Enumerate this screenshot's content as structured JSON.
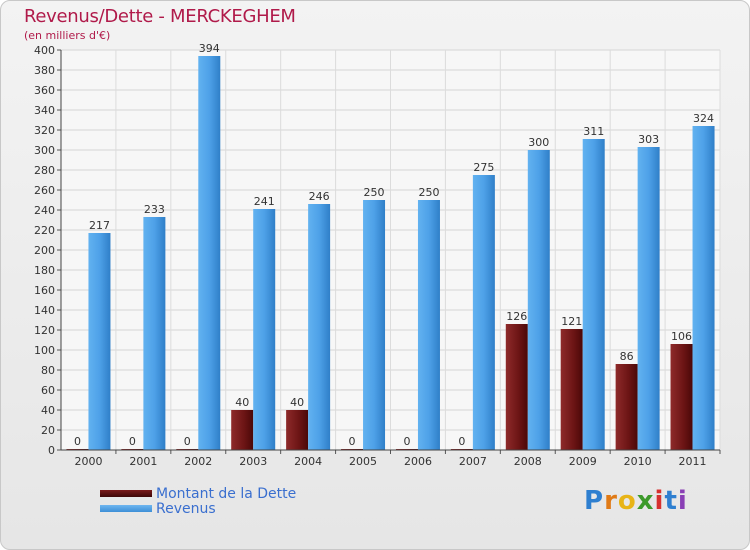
{
  "chart_data": {
    "type": "bar",
    "title": "Revenus/Dette - MERCKEGHEM",
    "subtitle": "(en milliers d'€)",
    "xlabel": "",
    "ylabel": "",
    "ylim": [
      0,
      400
    ],
    "yticks": [
      0,
      20,
      40,
      60,
      80,
      100,
      120,
      140,
      160,
      180,
      200,
      220,
      240,
      260,
      280,
      300,
      320,
      340,
      360,
      380,
      400
    ],
    "grid": true,
    "categories": [
      "2000",
      "2001",
      "2002",
      "2003",
      "2004",
      "2005",
      "2006",
      "2007",
      "2008",
      "2009",
      "2010",
      "2011"
    ],
    "series": [
      {
        "name": "Montant de la Dette",
        "color": "#6b1414",
        "values": [
          0,
          0,
          0,
          40,
          40,
          0,
          0,
          0,
          126,
          121,
          86,
          106
        ]
      },
      {
        "name": "Revenus",
        "color": "#4ea1e8",
        "values": [
          217,
          233,
          394,
          241,
          246,
          250,
          250,
          275,
          300,
          311,
          303,
          324
        ]
      }
    ]
  },
  "legend": {
    "items": [
      {
        "label": "Montant de la Dette"
      },
      {
        "label": "Revenus"
      }
    ]
  },
  "brand": {
    "letters": [
      "P",
      "r",
      "o",
      "x",
      "i",
      "t",
      "i"
    ]
  }
}
